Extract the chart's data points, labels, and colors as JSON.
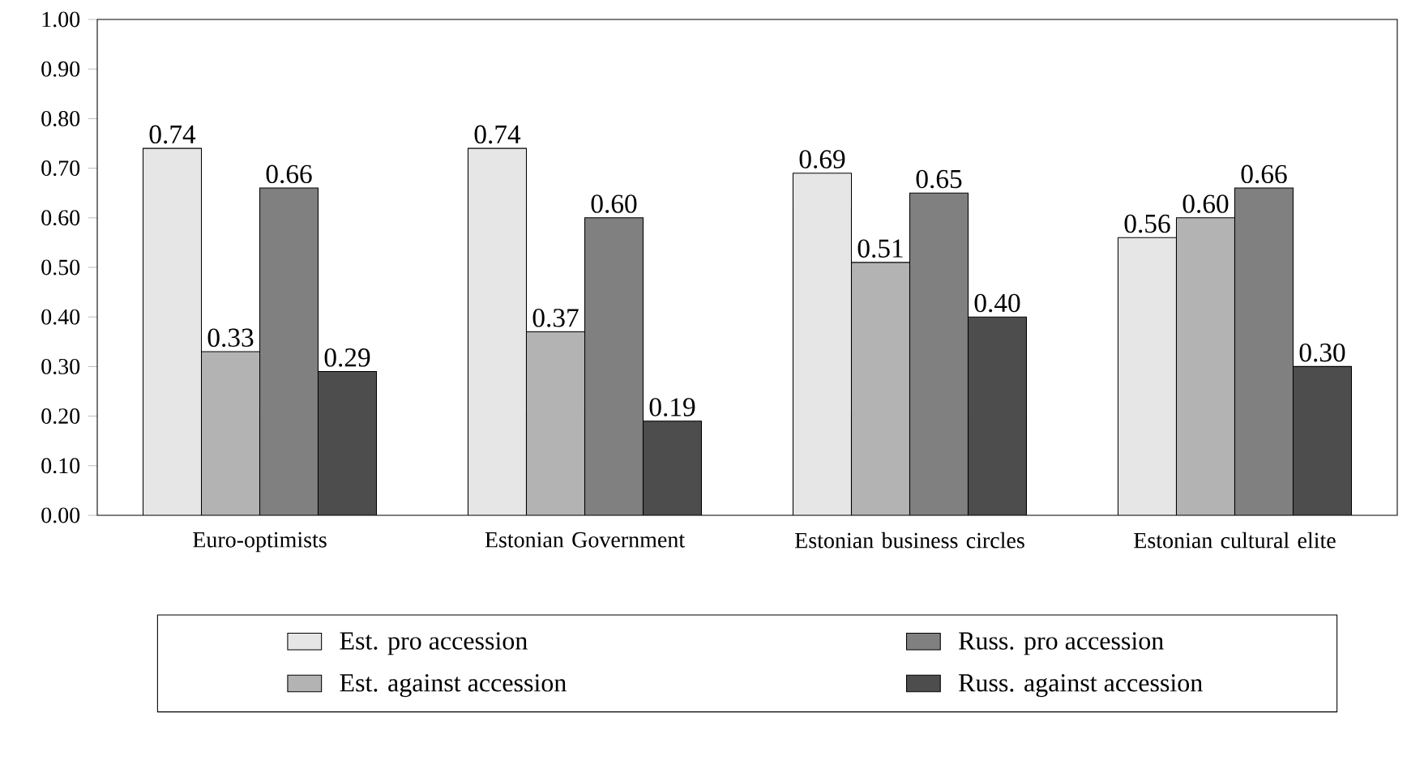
{
  "chart_data": {
    "type": "bar",
    "categories": [
      "Euro-optimists",
      "Estonian Government",
      "Estonian business circles",
      "Estonian cultural elite"
    ],
    "series": [
      {
        "name": "Est. pro accession",
        "color": "#e6e6e6",
        "values": [
          0.74,
          0.74,
          0.69,
          0.56
        ],
        "value_labels": [
          "0.74",
          "0.74",
          "0.69",
          "0.56"
        ]
      },
      {
        "name": "Est. against accession",
        "color": "#b3b3b3",
        "values": [
          0.33,
          0.37,
          0.51,
          0.6
        ],
        "value_labels": [
          "0.33",
          "0.37",
          "0.51",
          "0.60"
        ]
      },
      {
        "name": "Russ. pro accession",
        "color": "#808080",
        "values": [
          0.66,
          0.6,
          0.65,
          0.66
        ],
        "value_labels": [
          "0.66",
          "0.60",
          "0.65",
          "0.66"
        ]
      },
      {
        "name": "Russ. against accession",
        "color": "#4d4d4d",
        "values": [
          0.29,
          0.19,
          0.4,
          0.3
        ],
        "value_labels": [
          "0.29",
          "0.19",
          "0.40",
          "0.30"
        ]
      }
    ],
    "ylim": [
      0,
      1
    ],
    "yticks": [
      {
        "value": 0,
        "label": "0.00"
      },
      {
        "value": 0.1,
        "label": "0.10"
      },
      {
        "value": 0.2,
        "label": "0.20"
      },
      {
        "value": 0.3,
        "label": "0.30"
      },
      {
        "value": 0.4,
        "label": "0.40"
      },
      {
        "value": 0.5,
        "label": "0.50"
      },
      {
        "value": 0.6,
        "label": "0.60"
      },
      {
        "value": 0.7,
        "label": "0.70"
      },
      {
        "value": 0.8,
        "label": "0.80"
      },
      {
        "value": 0.9,
        "label": "0.90"
      },
      {
        "value": 1,
        "label": "1.00"
      }
    ],
    "legend": "bottom",
    "grid": false
  }
}
